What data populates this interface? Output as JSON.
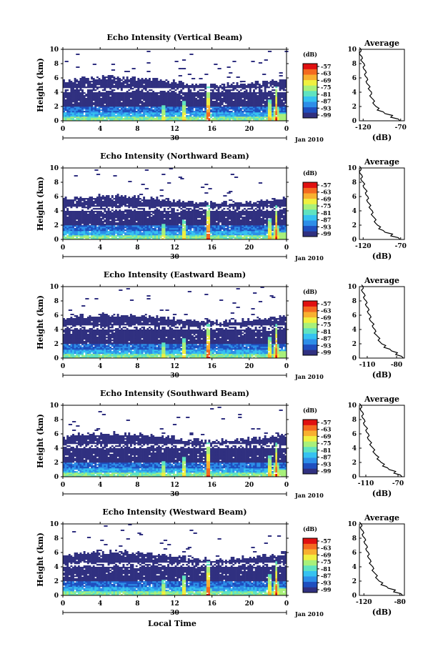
{
  "chart_data": {
    "type": "heatmap",
    "shared_x_label": "Local Time",
    "date_label": "Jan 2010",
    "day_label": "30",
    "x_ticks": [
      "0",
      "4",
      "8",
      "12",
      "16",
      "20",
      "0"
    ],
    "xlim_hours": [
      0,
      24
    ],
    "y_label": "Height (km)",
    "ylim_km": [
      0,
      10
    ],
    "y_ticks": [
      "0",
      "2",
      "4",
      "6",
      "8",
      "10"
    ],
    "colorbar": {
      "unit_label": "(dB)",
      "ticks": [
        "-57",
        "-63",
        "-69",
        "-75",
        "-81",
        "-87",
        "-93",
        "-99"
      ],
      "range_db": [
        -99,
        -57
      ],
      "colors": [
        "#303080",
        "#1f4fbf",
        "#2d8ee8",
        "#36c2f0",
        "#5fe3c0",
        "#a8f07a",
        "#f0f040",
        "#f8b030",
        "#f46a20",
        "#e01010"
      ]
    },
    "average_panel": {
      "title": "Average",
      "xlabel": "(dB)"
    },
    "panels": [
      {
        "name": "vertical",
        "title": "Echo Intensity (Vertical Beam)",
        "avg_x_ticks": [
          "-120",
          "-70"
        ],
        "avg_xlim": [
          -125,
          -65
        ],
        "avg_profile": [
          [
            -72,
            0
          ],
          [
            -82,
            0.5
          ],
          [
            -92,
            1
          ],
          [
            -100,
            1.5
          ],
          [
            -104,
            2
          ],
          [
            -106,
            2.5
          ],
          [
            -108,
            3
          ],
          [
            -110,
            3.5
          ],
          [
            -110,
            4
          ],
          [
            -112,
            4.5
          ],
          [
            -114,
            5
          ],
          [
            -115,
            5.5
          ],
          [
            -116,
            6
          ],
          [
            -117,
            6.5
          ],
          [
            -118,
            7
          ],
          [
            -119,
            7.5
          ],
          [
            -120,
            8
          ],
          [
            -122,
            8.5
          ],
          [
            -123,
            9
          ],
          [
            -124,
            9.5
          ],
          [
            -124,
            10
          ]
        ]
      },
      {
        "name": "northward",
        "title": "Echo Intensity (Northward Beam)",
        "avg_x_ticks": [
          "-120",
          "-70"
        ],
        "avg_xlim": [
          -125,
          -65
        ],
        "avg_profile": [
          [
            -72,
            0
          ],
          [
            -82,
            0.5
          ],
          [
            -92,
            1
          ],
          [
            -98,
            1.5
          ],
          [
            -102,
            2
          ],
          [
            -104,
            2.5
          ],
          [
            -106,
            3
          ],
          [
            -108,
            3.5
          ],
          [
            -109,
            4
          ],
          [
            -111,
            4.5
          ],
          [
            -113,
            5
          ],
          [
            -114,
            5.5
          ],
          [
            -115,
            6
          ],
          [
            -116,
            6.5
          ],
          [
            -118,
            7
          ],
          [
            -119,
            7.5
          ],
          [
            -121,
            8
          ],
          [
            -122,
            8.5
          ],
          [
            -123,
            9
          ],
          [
            -124,
            9.5
          ],
          [
            -124,
            10
          ]
        ]
      },
      {
        "name": "eastward",
        "title": "Echo Intensity (Eastward Beam)",
        "avg_x_ticks": [
          "-110",
          "-80"
        ],
        "avg_xlim": [
          -118,
          -72
        ],
        "avg_profile": [
          [
            -74,
            0
          ],
          [
            -80,
            0.5
          ],
          [
            -86,
            1
          ],
          [
            -92,
            1.5
          ],
          [
            -96,
            2
          ],
          [
            -98,
            2.5
          ],
          [
            -100,
            3
          ],
          [
            -102,
            3.5
          ],
          [
            -103,
            4
          ],
          [
            -104,
            4.5
          ],
          [
            -106,
            5
          ],
          [
            -107,
            5.5
          ],
          [
            -108,
            6
          ],
          [
            -109,
            6.5
          ],
          [
            -110,
            7
          ],
          [
            -111,
            7.5
          ],
          [
            -112,
            8
          ],
          [
            -113,
            8.5
          ],
          [
            -114,
            9
          ],
          [
            -115,
            9.5
          ],
          [
            -115,
            10
          ]
        ]
      },
      {
        "name": "southward",
        "title": "Echo Intensity (Southward Beam)",
        "avg_x_ticks": [
          "-110",
          "-70"
        ],
        "avg_xlim": [
          -118,
          -62
        ],
        "avg_profile": [
          [
            -66,
            0
          ],
          [
            -74,
            0.5
          ],
          [
            -82,
            1
          ],
          [
            -88,
            1.5
          ],
          [
            -92,
            2
          ],
          [
            -95,
            2.5
          ],
          [
            -98,
            3
          ],
          [
            -100,
            3.5
          ],
          [
            -102,
            4
          ],
          [
            -104,
            4.5
          ],
          [
            -106,
            5
          ],
          [
            -107,
            5.5
          ],
          [
            -108,
            6
          ],
          [
            -109,
            6.5
          ],
          [
            -111,
            7
          ],
          [
            -112,
            7.5
          ],
          [
            -113,
            8
          ],
          [
            -114,
            8.5
          ],
          [
            -115,
            9
          ],
          [
            -116,
            9.5
          ],
          [
            -117,
            10
          ]
        ]
      },
      {
        "name": "westward",
        "title": "Echo Intensity (Westward Beam)",
        "avg_x_ticks": [
          "-120",
          "-80"
        ],
        "avg_xlim": [
          -125,
          -75
        ],
        "avg_profile": [
          [
            -78,
            0
          ],
          [
            -86,
            0.5
          ],
          [
            -94,
            1
          ],
          [
            -100,
            1.5
          ],
          [
            -104,
            2
          ],
          [
            -106,
            2.5
          ],
          [
            -108,
            3
          ],
          [
            -110,
            3.5
          ],
          [
            -111,
            4
          ],
          [
            -113,
            4.5
          ],
          [
            -114,
            5
          ],
          [
            -115,
            5.5
          ],
          [
            -116,
            6
          ],
          [
            -117,
            6.5
          ],
          [
            -118,
            7
          ],
          [
            -119,
            7.5
          ],
          [
            -120,
            8
          ],
          [
            -121,
            8.5
          ],
          [
            -122,
            9
          ],
          [
            -123,
            9.5
          ],
          [
            -124,
            10
          ]
        ]
      }
    ]
  }
}
